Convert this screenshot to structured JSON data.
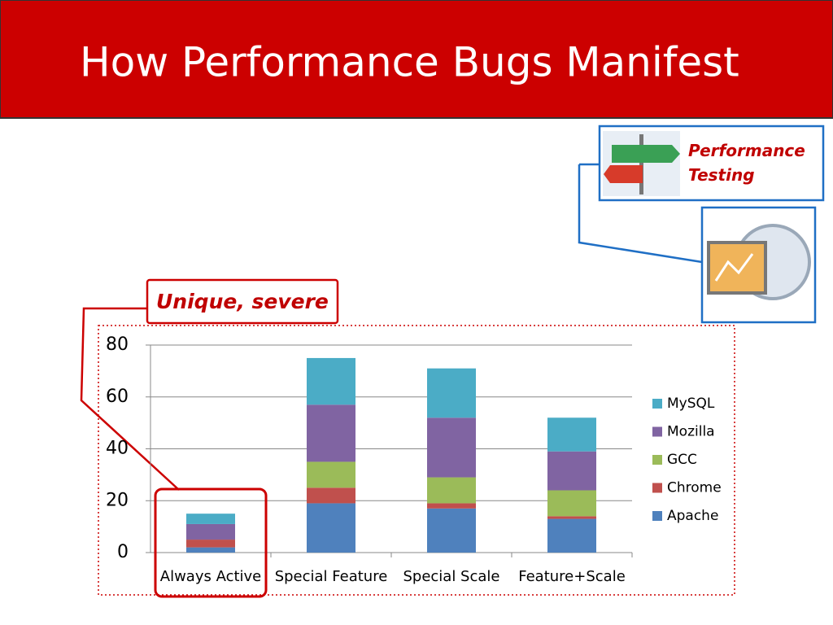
{
  "chart_data": {
    "type": "stacked_bar",
    "title": "How Performance Bugs Manifest",
    "annotations": [
      "Unique, severe",
      "Performance Testing"
    ],
    "categories": [
      "Always Active",
      "Special Feature",
      "Special Scale",
      "Feature+Scale"
    ],
    "series": [
      {
        "name": "Apache",
        "color": "#4f81bd",
        "values": [
          2,
          19,
          17,
          13
        ]
      },
      {
        "name": "Chrome",
        "color": "#c0504d",
        "values": [
          3,
          6,
          2,
          1
        ]
      },
      {
        "name": "GCC",
        "color": "#9bbb59",
        "values": [
          0,
          10,
          10,
          10
        ]
      },
      {
        "name": "Mozilla",
        "color": "#8064a2",
        "values": [
          6,
          22,
          23,
          15
        ]
      },
      {
        "name": "MySQL",
        "color": "#4bacc6",
        "values": [
          4,
          18,
          19,
          13
        ]
      }
    ],
    "ylim": [
      0,
      80
    ],
    "yticks": [
      0,
      20,
      40,
      60,
      80
    ],
    "grid": true,
    "legend": "right"
  }
}
